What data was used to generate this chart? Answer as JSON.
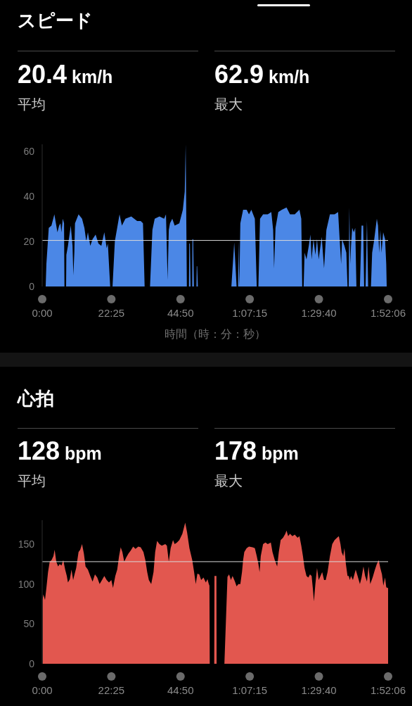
{
  "chart_data": [
    {
      "type": "area",
      "title": "スピード",
      "xlabel": "時間（時：分：秒）",
      "annotations": [
        "20.4 km/h",
        "平均",
        "62.9 km/h",
        "最大"
      ],
      "x": [
        68,
        82,
        128,
        180,
        237,
        296,
        330,
        356,
        374,
        401,
        425,
        433,
        465,
        470,
        501,
        556,
        590,
        606,
        625,
        638,
        707,
        775,
        821,
        857,
        889,
        935,
        980,
        1039,
        1094,
        1150,
        1208,
        1254,
        1277,
        1322,
        1368,
        1413,
        1504,
        1550,
        1618,
        1732,
        1846,
        1915,
        1960,
        1992,
        2097,
        2143,
        2188,
        2280,
        2371,
        2407,
        2439,
        2462,
        2485,
        2530,
        2576,
        2667,
        2735,
        2772,
        2790,
        2813,
        2854,
        2860,
        2872,
        2885,
        2918,
        2922,
        2936,
        2950,
        3000,
        3005,
        3014,
        3027,
        3679,
        3734,
        3780,
        3810,
        3816,
        3834,
        3853,
        3907,
        3976,
        4021,
        4067,
        4135,
        4172,
        4204,
        4236,
        4295,
        4386,
        4455,
        4491,
        4509,
        4537,
        4591,
        4660,
        4751,
        4819,
        4911,
        5002,
        5038,
        5056,
        5084,
        5102,
        5139,
        5184,
        5216,
        5239,
        5275,
        5312,
        5344,
        5376,
        5435,
        5481,
        5526,
        5595,
        5686,
        5754,
        5786,
        5813,
        5831,
        5877,
        5914,
        5937,
        5960,
        5972,
        5990,
        6005,
        6028,
        6060,
        6087,
        6110,
        6178,
        6210,
        6242,
        6260,
        6288,
        6315,
        6338,
        6393,
        6416,
        6452,
        6507,
        6530,
        6552,
        6575,
        6598,
        6630,
        6667,
        6690,
        6699
      ],
      "values": [
        0,
        10,
        26,
        27,
        32,
        24,
        27,
        28,
        24,
        30,
        28,
        0,
        0,
        14,
        18,
        27,
        18,
        5,
        15,
        28,
        32,
        30,
        26,
        20,
        24,
        18,
        21,
        23,
        19,
        18,
        24,
        17,
        19,
        0,
        0,
        20,
        32,
        27,
        30,
        31,
        29,
        29,
        28,
        0,
        0,
        25,
        30,
        31,
        30,
        32,
        3,
        25,
        28,
        30,
        27,
        28,
        34,
        42,
        62.9,
        0,
        0,
        19,
        19,
        0,
        0,
        21,
        21,
        0,
        0,
        9,
        9,
        0,
        0,
        19.5,
        0,
        0,
        20,
        0,
        28,
        34,
        34,
        32,
        34,
        30,
        0,
        0,
        30,
        32,
        32,
        33,
        25,
        8,
        26,
        33,
        34,
        35,
        32,
        32,
        34,
        30,
        0,
        0,
        15,
        12,
        18,
        23,
        12,
        21,
        14,
        21,
        12,
        22,
        8,
        25,
        32,
        32,
        33,
        20,
        10,
        21,
        18,
        15,
        0,
        0,
        35,
        10,
        18,
        26,
        24,
        26,
        0,
        0,
        27,
        27,
        0,
        0,
        29,
        0,
        0,
        15,
        20,
        30,
        27,
        15,
        25,
        15,
        24,
        21,
        10,
        0
      ],
      "color": "#4b87e6",
      "xlim": [
        0,
        6726
      ],
      "xticks": [
        {
          "value": 0,
          "label": "0:00"
        },
        {
          "value": 1345,
          "label": "22:25"
        },
        {
          "value": 2690,
          "label": "44:50"
        },
        {
          "value": 4035,
          "label": "1:07:15"
        },
        {
          "value": 5380,
          "label": "1:29:40"
        },
        {
          "value": 6726,
          "label": "1:52:06"
        }
      ],
      "ylim": [
        0,
        63
      ],
      "yticks": [
        0,
        20,
        40,
        60
      ],
      "ref_lines": [
        {
          "axis": "y",
          "value": 20.4,
          "color": "#d9d9d9"
        }
      ]
    },
    {
      "type": "area",
      "title": "心拍",
      "annotations": [
        "128 bpm",
        "平均",
        "178 bpm",
        "最大"
      ],
      "x": [
        9,
        23,
        55,
        82,
        114,
        146,
        182,
        219,
        242,
        274,
        310,
        342,
        374,
        410,
        447,
        479,
        501,
        538,
        570,
        602,
        629,
        661,
        707,
        739,
        775,
        811,
        843,
        889,
        935,
        980,
        1026,
        1071,
        1117,
        1163,
        1208,
        1254,
        1299,
        1345,
        1377,
        1422,
        1459,
        1495,
        1527,
        1559,
        1596,
        1632,
        1677,
        1723,
        1769,
        1814,
        1869,
        1915,
        1969,
        2006,
        2042,
        2074,
        2120,
        2165,
        2197,
        2234,
        2280,
        2325,
        2393,
        2425,
        2462,
        2498,
        2544,
        2576,
        2621,
        2667,
        2726,
        2781,
        2817,
        2863,
        2918,
        2954,
        2986,
        3018,
        3054,
        3091,
        3137,
        3182,
        3214,
        3240,
        3252,
        3258,
        3345,
        3350,
        3388,
        3392,
        3543,
        3603,
        3634,
        3670,
        3702,
        3748,
        3780,
        3816,
        3853,
        3885,
        3907,
        3930,
        3976,
        4021,
        4090,
        4135,
        4172,
        4204,
        4227,
        4250,
        4295,
        4341,
        4386,
        4446,
        4478,
        4523,
        4569,
        4601,
        4637,
        4683,
        4728,
        4751,
        4783,
        4819,
        4865,
        4911,
        4966,
        5002,
        5038,
        5070,
        5102,
        5139,
        5175,
        5207,
        5239,
        5262,
        5284,
        5312,
        5344,
        5376,
        5412,
        5444,
        5481,
        5513,
        5549,
        5595,
        5640,
        5686,
        5732,
        5768,
        5800,
        5822,
        5854,
        5877,
        5905,
        5937,
        5960,
        5982,
        6005,
        6042,
        6096,
        6133,
        6178,
        6210,
        6247,
        6279,
        6315,
        6347,
        6379,
        6425,
        6470,
        6507,
        6543,
        6575,
        6607,
        6634,
        6667,
        6690,
        6712,
        6726
      ],
      "values": [
        80,
        87,
        80,
        95,
        115,
        128,
        130,
        135,
        143,
        128,
        122,
        125,
        123,
        130,
        118,
        110,
        102,
        106,
        118,
        105,
        112,
        120,
        140,
        143,
        150,
        138,
        122,
        118,
        110,
        103,
        112,
        108,
        100,
        105,
        110,
        105,
        102,
        105,
        95,
        110,
        118,
        135,
        146,
        140,
        128,
        133,
        138,
        142,
        147,
        144,
        147,
        146,
        140,
        130,
        115,
        105,
        100,
        115,
        140,
        154,
        150,
        148,
        150,
        148,
        128,
        145,
        155,
        150,
        152,
        155,
        163,
        177,
        165,
        145,
        130,
        115,
        100,
        113,
        112,
        105,
        108,
        102,
        106,
        100,
        98,
        0,
        0,
        110,
        110,
        0,
        0,
        109,
        112,
        105,
        110,
        103,
        97,
        100,
        100,
        115,
        130,
        140,
        145,
        147,
        146,
        145,
        135,
        125,
        115,
        135,
        150,
        152,
        150,
        152,
        140,
        130,
        122,
        140,
        155,
        158,
        163,
        167,
        160,
        163,
        160,
        162,
        158,
        160,
        148,
        135,
        120,
        110,
        108,
        112,
        110,
        95,
        78,
        100,
        120,
        105,
        110,
        115,
        105,
        105,
        115,
        135,
        150,
        155,
        158,
        160,
        150,
        140,
        135,
        145,
        125,
        110,
        110,
        105,
        110,
        105,
        118,
        110,
        100,
        108,
        122,
        110,
        103,
        122,
        100,
        108,
        118,
        125,
        130,
        120,
        112,
        98,
        108,
        96,
        95,
        95
      ],
      "color": "#e2574f",
      "xlim": [
        0,
        6726
      ],
      "xticks": [
        {
          "value": 0,
          "label": "0:00"
        },
        {
          "value": 1345,
          "label": "22:25"
        },
        {
          "value": 2690,
          "label": "44:50"
        },
        {
          "value": 4035,
          "label": "1:07:15"
        },
        {
          "value": 5380,
          "label": "1:29:40"
        },
        {
          "value": 6726,
          "label": "1:52:06"
        }
      ],
      "ylim": [
        0,
        180
      ],
      "yticks": [
        0,
        50,
        100,
        150
      ],
      "ref_lines": [
        {
          "axis": "y",
          "value": 128,
          "color": "#d9d9d9"
        }
      ]
    }
  ]
}
